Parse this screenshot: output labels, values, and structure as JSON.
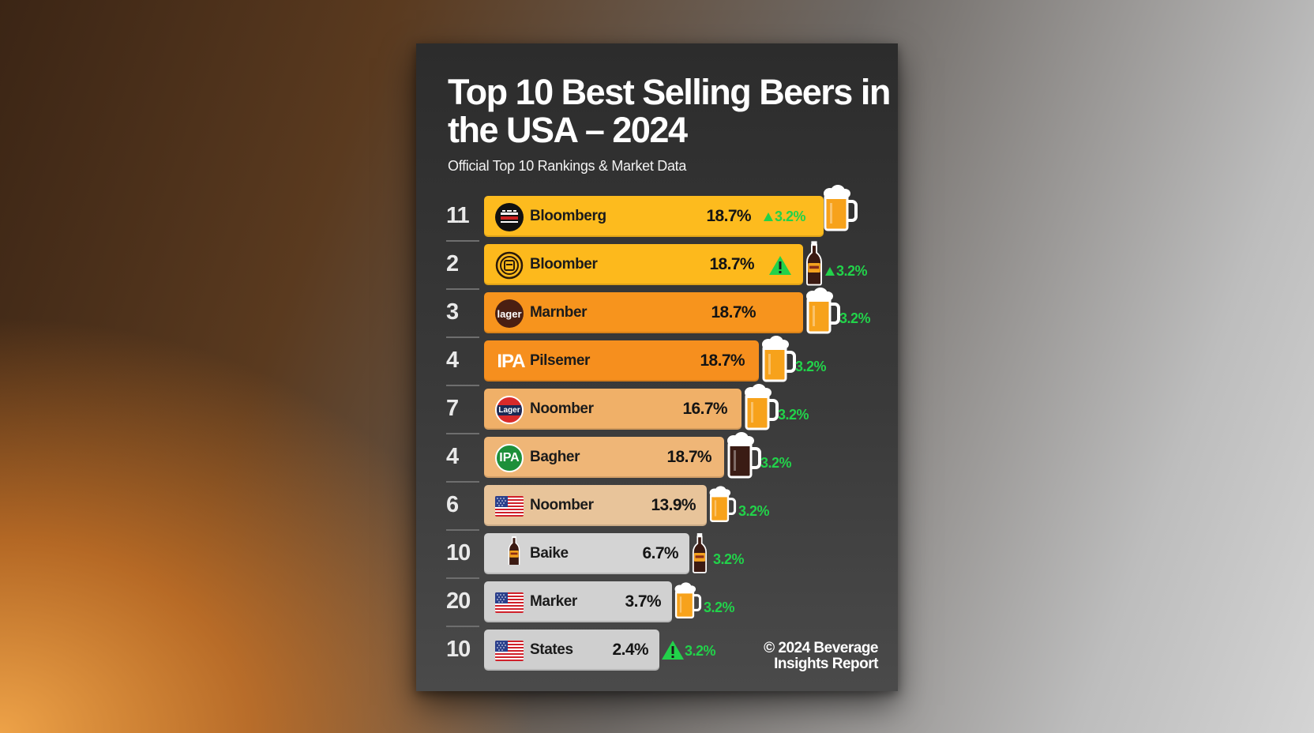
{
  "chart_data": {
    "type": "bar",
    "orientation": "horizontal",
    "title": "Top 10 Best Selling Beers in the USA – 2024",
    "subtitle": "Official Top 10 Rankings & Market Data",
    "rows": [
      {
        "rank": "11",
        "name": "Bloomberg",
        "value": 18.7,
        "value_label": "18.7%",
        "change": "3.2%",
        "logo": "bloomberg-logo",
        "icon": "beer-mug-icon",
        "color": "#fdbb1e"
      },
      {
        "rank": "2",
        "name": "Bloomber",
        "value": 18.7,
        "value_label": "18.7%",
        "change": "3.2%",
        "logo": "badge-logo",
        "icon": "beer-bottle-icon",
        "color": "#fdb91c"
      },
      {
        "rank": "3",
        "name": "Marnber",
        "value": 18.7,
        "value_label": "18.7%",
        "change": "3.2%",
        "logo": "lager-logo",
        "logo_text": "lager",
        "icon": "beer-mug-icon",
        "color": "#f7941d"
      },
      {
        "rank": "4",
        "name": "Pilsemer",
        "value": 18.7,
        "value_label": "18.7%",
        "change": "3.2%",
        "logo": "ipa-logo",
        "logo_text": "IPA",
        "icon": "beer-mug-icon",
        "color": "#f68f1e"
      },
      {
        "rank": "7",
        "name": "Noomber",
        "value": 16.7,
        "value_label": "16.7%",
        "change": "3.2%",
        "logo": "lager-red-logo",
        "logo_text": "Lager",
        "icon": "beer-mug-icon",
        "color": "#f0b068"
      },
      {
        "rank": "4",
        "name": "Bagher",
        "value": 18.7,
        "value_label": "18.7%",
        "change": "3.2%",
        "logo": "ipa-green-logo",
        "logo_text": "IPA",
        "icon": "dark-beer-mug-icon",
        "color": "#efb677"
      },
      {
        "rank": "6",
        "name": "Noomber",
        "value": 13.9,
        "value_label": "13.9%",
        "change": "3.2%",
        "logo": "us-flag-icon",
        "icon": "beer-mug-icon",
        "color": "#e8c49a"
      },
      {
        "rank": "10",
        "name": "Baike",
        "value": 6.7,
        "value_label": "6.7%",
        "change": "3.2%",
        "logo": "beer-bottle-icon",
        "icon": "beer-bottle-icon",
        "color": "#d4d4d4"
      },
      {
        "rank": "20",
        "name": "Marker",
        "value": 3.7,
        "value_label": "3.7%",
        "change": "3.2%",
        "logo": "us-flag-icon",
        "icon": "beer-mug-icon",
        "color": "#d1d1d1"
      },
      {
        "rank": "10",
        "name": "States",
        "value": 2.4,
        "value_label": "2.4%",
        "change": "3.2%",
        "logo": "us-flag-icon",
        "icon": "up-triangle-icon",
        "color": "#cfcfcf"
      }
    ],
    "grid": false,
    "legend": "none"
  },
  "footer": {
    "line1": "© 2024 Beverage",
    "line2": "Insights Report"
  },
  "colors": {
    "positive": "#22d24a",
    "poster_bg": "#2f2f2f"
  }
}
